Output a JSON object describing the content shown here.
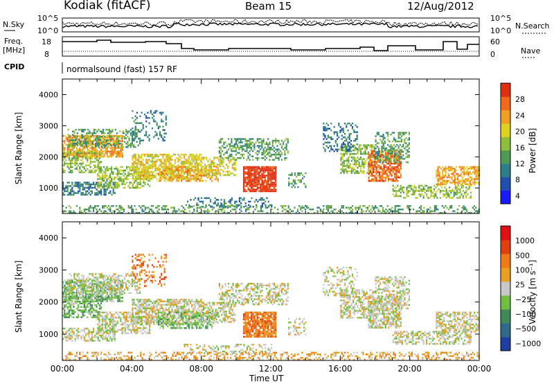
{
  "header": {
    "station": "Kodiak (fitACF)",
    "beam": "Beam 15",
    "date": "12/Aug/2012"
  },
  "panels": {
    "nsky_label": "N.Sky",
    "nsearch_label": "N.Search",
    "freq_label_1": "Freq.",
    "freq_label_2": "[MHz]",
    "nave_label": "Nave",
    "cpid_label": "CPID",
    "cpid_value": "normalsound (fast) 157 RF",
    "noise_left_ticks": [
      "10^5",
      "10^0"
    ],
    "noise_right_ticks": [
      "10^5",
      "10^0"
    ],
    "freq_left_ticks": [
      "18",
      "8"
    ],
    "freq_right_ticks": [
      "60",
      "0"
    ]
  },
  "chart_data": [
    {
      "type": "heatmap",
      "name": "power",
      "ylabel": "Slant Range [km]",
      "xlabel": "",
      "y_ticks": [
        "4000",
        "3000",
        "2000",
        "1000"
      ],
      "x_ticks": [
        "00:00",
        "04:00",
        "08:00",
        "12:00",
        "16:00",
        "20:00",
        "00:00"
      ],
      "ylim": [
        180,
        4500
      ],
      "colorbar": {
        "label": "Power [dB]",
        "ticks": [
          "28",
          "24",
          "20",
          "16",
          "12",
          "8",
          "4"
        ],
        "range": [
          0,
          30
        ],
        "colors": [
          "#1a1aff",
          "#1f4fb0",
          "#2b7f8a",
          "#4f9a52",
          "#8fbf3a",
          "#e0d020",
          "#f0a020",
          "#f06a1a",
          "#e03010"
        ]
      }
    },
    {
      "type": "heatmap",
      "name": "velocity",
      "ylabel": "Slant Range [km]",
      "xlabel": "Time UT",
      "y_ticks": [
        "4000",
        "3000",
        "2000",
        "1000"
      ],
      "x_ticks": [
        "00:00",
        "04:00",
        "08:00",
        "12:00",
        "16:00",
        "20:00",
        "00:00"
      ],
      "ylim": [
        180,
        4500
      ],
      "colorbar": {
        "label": "Velocity [m s⁻¹]",
        "ticks": [
          "1000",
          "500",
          "100",
          "25",
          "−25",
          "−100",
          "−500",
          "−1000"
        ],
        "colors": [
          "#1c3fa0",
          "#2f6a8a",
          "#3f8a5a",
          "#6fc040",
          "#c8c8c8",
          "#e8a020",
          "#f07a18",
          "#e04010",
          "#e01010"
        ]
      }
    }
  ],
  "footer": {
    "time_axis_label": "Time UT"
  }
}
